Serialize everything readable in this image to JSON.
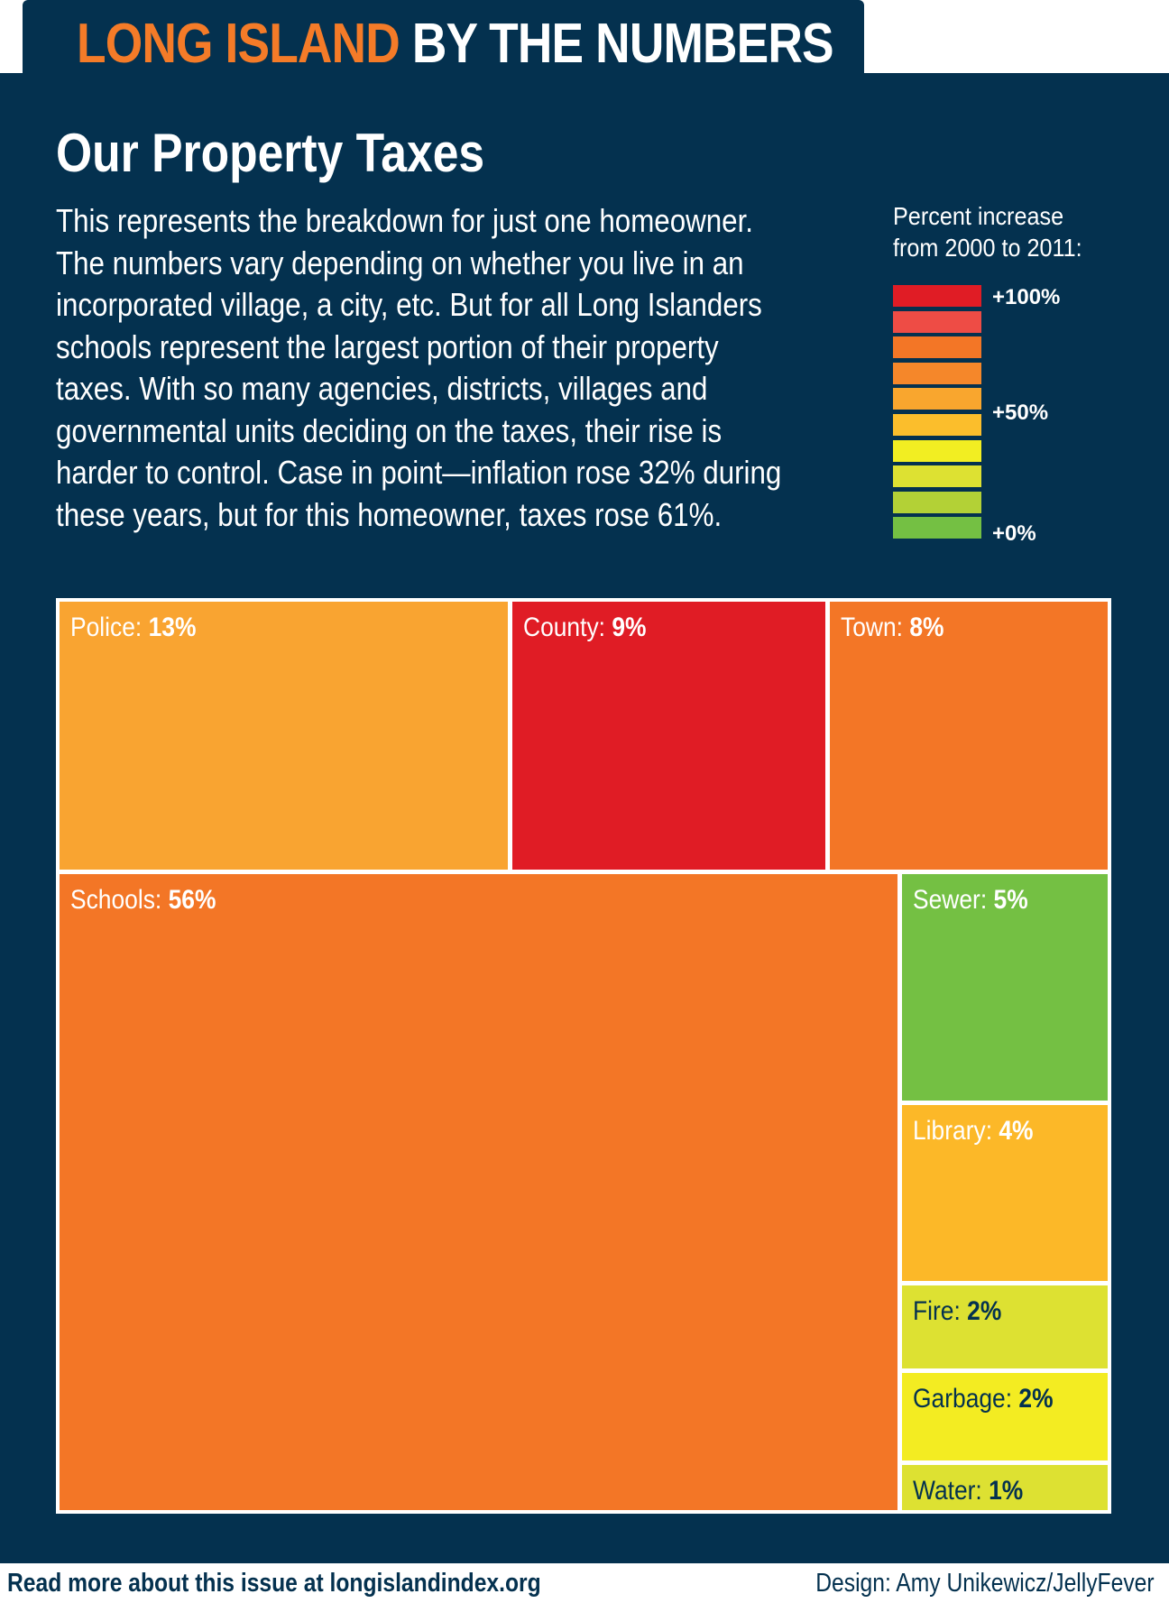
{
  "header": {
    "title_orange": "LONG ISLAND",
    "title_white": "BY THE NUMBERS"
  },
  "section_title": "Our Property Taxes",
  "intro": {
    "lines": [
      "This represents the breakdown for just one homeowner.",
      "The numbers vary depending on whether you live in an",
      "incorporated village, a city, etc. But for all Long Islanders",
      "schools represent the largest portion of their property",
      "taxes. With so many agencies, districts, villages and",
      "governmental units deciding on the taxes, their rise is",
      "harder to control. Case in point—inflation rose 32% during",
      "these years, but for this homeowner, taxes rose 61%."
    ]
  },
  "legend": {
    "title_lines": [
      "Percent increase",
      "from 2000 to 2011:"
    ],
    "labels": {
      "high": "+100%",
      "mid": "+50%",
      "low": "+0%"
    },
    "colors": [
      "#e01c25",
      "#ee4c45",
      "#f37626",
      "#f5872a",
      "#f9a62e",
      "#fbbe2c",
      "#f2ee22",
      "#dde132",
      "#b3d136",
      "#74c043"
    ]
  },
  "chart_data": {
    "type": "treemap",
    "title": "Our Property Taxes",
    "color_scale": {
      "label": "Percent increase from 2000 to 2011",
      "min": 0,
      "mid": 50,
      "max": 100
    },
    "items": [
      {
        "name": "Police",
        "share": 13,
        "share_label": "13%",
        "color": "#f9a431"
      },
      {
        "name": "County",
        "share": 9,
        "share_label": "9%",
        "color": "#e01c25"
      },
      {
        "name": "Town",
        "share": 8,
        "share_label": "8%",
        "color": "#f37626"
      },
      {
        "name": "Schools",
        "share": 56,
        "share_label": "56%",
        "color": "#f37626"
      },
      {
        "name": "Sewer",
        "share": 5,
        "share_label": "5%",
        "color": "#74c043"
      },
      {
        "name": "Library",
        "share": 4,
        "share_label": "4%",
        "color": "#fcb828"
      },
      {
        "name": "Fire",
        "share": 2,
        "share_label": "2%",
        "color": "#dde132"
      },
      {
        "name": "Garbage",
        "share": 2,
        "share_label": "2%",
        "color": "#f3ec22"
      },
      {
        "name": "Water",
        "share": 1,
        "share_label": "1%",
        "color": "#dde132"
      }
    ]
  },
  "footer": {
    "link_text": "Read more about this issue at longislandindex.org",
    "credit": "Design: Amy Unikewicz/JellyFever"
  }
}
